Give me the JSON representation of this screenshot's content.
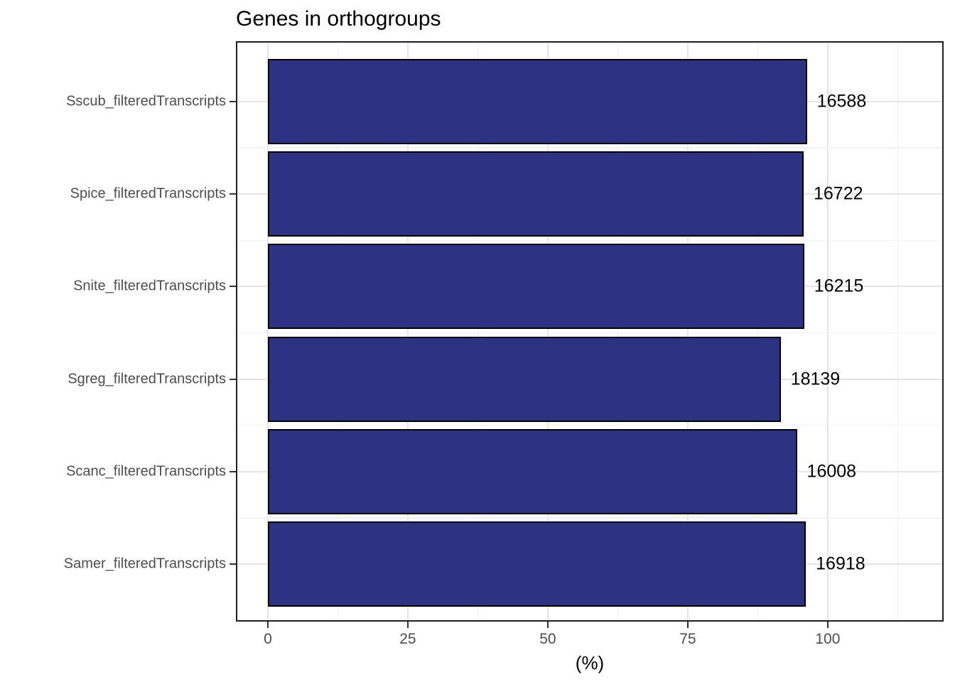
{
  "chart_data": {
    "type": "bar",
    "orientation": "horizontal",
    "title": "Genes in orthogroups",
    "xlabel": "(%)",
    "ylabel": "",
    "categories": [
      "Sscub_filteredTranscripts",
      "Spice_filteredTranscripts",
      "Snite_filteredTranscripts",
      "Sgreg_filteredTranscripts",
      "Scanc_filteredTranscripts",
      "Samer_filteredTranscripts"
    ],
    "values_percent": [
      96.3,
      95.7,
      95.8,
      91.6,
      94.5,
      96.1
    ],
    "bar_labels": [
      "16588",
      "16722",
      "16215",
      "18139",
      "16008",
      "16918"
    ],
    "x_ticks": [
      0,
      25,
      50,
      75,
      100
    ],
    "x_tick_labels": [
      "0",
      "25",
      "50",
      "75",
      "100"
    ],
    "x_minor_ticks": [
      12.5,
      37.5,
      62.5,
      87.5,
      112.5
    ],
    "xlim": [
      -5.7,
      120.7
    ],
    "grid": true,
    "legend": false,
    "colors": {
      "bar_fill": "#2d3282",
      "bar_stroke": "#000000",
      "panel_border": "#1f1f1f",
      "grid_major": "#e4e4e4",
      "grid_minor": "#efefef",
      "axis_text": "#4d4d4d",
      "tick_mark": "#333333",
      "title_text": "#000000",
      "background": "#ffffff"
    }
  }
}
